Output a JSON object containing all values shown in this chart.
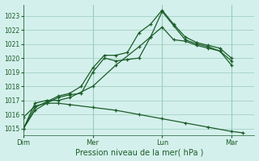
{
  "xlabel": "Pression niveau de la mer( hPa )",
  "ylim": [
    1014.5,
    1023.8
  ],
  "yticks": [
    1015,
    1016,
    1017,
    1018,
    1019,
    1020,
    1021,
    1022,
    1023
  ],
  "bg_color": "#d4f0ec",
  "grid_color": "#99ccbb",
  "line_color": "#1a5c28",
  "xtick_labels": [
    "Dim",
    "Mer",
    "Lun",
    "Mar"
  ],
  "xtick_positions": [
    0,
    3,
    6,
    9
  ],
  "xlim": [
    0,
    10
  ],
  "line1": {
    "x": [
      0,
      0.5,
      1.0,
      1.5,
      2.0,
      2.5,
      3.0,
      3.5,
      4.0,
      4.5,
      5.0,
      5.5,
      6.0,
      6.5,
      7.0,
      7.5,
      8.0,
      8.5,
      9.0
    ],
    "y": [
      1015.0,
      1016.3,
      1016.8,
      1017.2,
      1017.4,
      1017.5,
      1019.0,
      1020.0,
      1019.8,
      1019.9,
      1020.0,
      1021.5,
      1023.3,
      1022.3,
      1021.3,
      1021.0,
      1020.8,
      1020.5,
      1019.5
    ]
  },
  "line2": {
    "x": [
      0,
      0.5,
      1.0,
      1.5,
      2.0,
      2.5,
      3.0,
      3.5,
      4.0,
      4.5,
      5.0,
      5.5,
      6.0,
      6.5,
      7.0,
      7.5,
      8.0,
      8.5,
      9.0
    ],
    "y": [
      1015.0,
      1016.5,
      1016.9,
      1017.3,
      1017.5,
      1018.0,
      1019.3,
      1020.2,
      1020.2,
      1020.4,
      1021.8,
      1022.4,
      1023.4,
      1022.4,
      1021.5,
      1021.1,
      1020.9,
      1020.7,
      1020.0
    ]
  },
  "line3": {
    "x": [
      0,
      0.5,
      1.0,
      1.5,
      2.0,
      3.0,
      4.0,
      5.0,
      5.5,
      6.0,
      6.5,
      7.0,
      7.5,
      8.0,
      8.5,
      9.0
    ],
    "y": [
      1015.0,
      1016.8,
      1017.0,
      1017.0,
      1017.2,
      1018.0,
      1019.5,
      1020.8,
      1021.5,
      1022.2,
      1021.3,
      1021.2,
      1020.9,
      1020.7,
      1020.5,
      1019.8
    ]
  },
  "line4": {
    "x": [
      0,
      0.5,
      1.0,
      1.5,
      2.0,
      3.0,
      4.0,
      5.0,
      6.0,
      7.0,
      8.0,
      9.0,
      9.5
    ],
    "y": [
      1015.8,
      1016.6,
      1016.8,
      1016.8,
      1016.7,
      1016.5,
      1016.3,
      1016.0,
      1015.7,
      1015.4,
      1015.1,
      1014.8,
      1014.7
    ]
  }
}
